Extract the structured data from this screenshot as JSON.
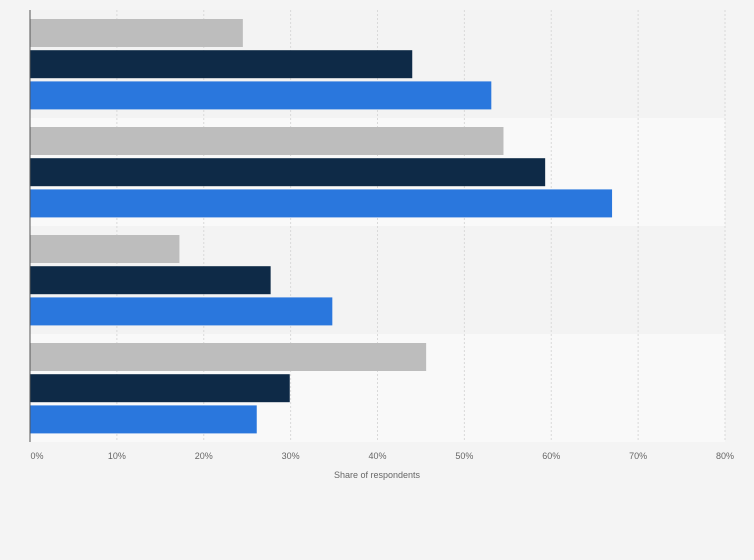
{
  "chart_data": {
    "type": "bar",
    "orientation": "horizontal",
    "groups": 4,
    "series": [
      {
        "color": "#bdbdbd",
        "values": [
          24.5,
          54.5,
          17.2,
          45.6
        ]
      },
      {
        "color": "#0e2a47",
        "values": [
          44.0,
          59.3,
          27.7,
          29.9
        ]
      },
      {
        "color": "#2a77dd",
        "values": [
          53.1,
          67.0,
          34.8,
          26.1
        ]
      }
    ],
    "xlim": [
      0,
      80
    ],
    "x_ticks": [
      0,
      10,
      20,
      30,
      40,
      50,
      60,
      70,
      80
    ],
    "x_tick_labels": [
      "0%",
      "10%",
      "20%",
      "30%",
      "40%",
      "50%",
      "60%",
      "70%",
      "80%"
    ],
    "xlabel": "Share of respondents",
    "grid": true,
    "band_colors": [
      "#f3f3f3",
      "#f9f9f9"
    ]
  }
}
